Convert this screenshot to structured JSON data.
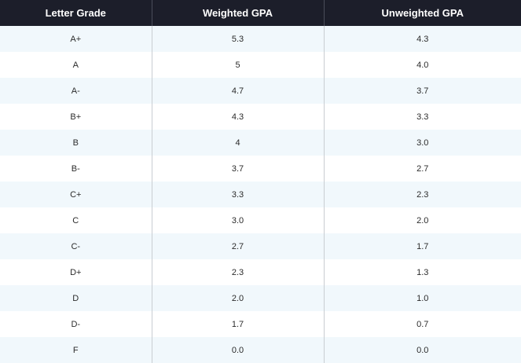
{
  "table": {
    "headers": [
      "Letter Grade",
      "Weighted GPA",
      "Unweighted GPA"
    ],
    "rows": [
      [
        "A+",
        "5.3",
        "4.3"
      ],
      [
        "A",
        "5",
        "4.0"
      ],
      [
        "A-",
        "4.7",
        "3.7"
      ],
      [
        "B+",
        "4.3",
        "3.3"
      ],
      [
        "B",
        "4",
        "3.0"
      ],
      [
        "B-",
        "3.7",
        "2.7"
      ],
      [
        "C+",
        "3.3",
        "2.3"
      ],
      [
        "C",
        "3.0",
        "2.0"
      ],
      [
        "C-",
        "2.7",
        "1.7"
      ],
      [
        "D+",
        "2.3",
        "1.3"
      ],
      [
        "D",
        "2.0",
        "1.0"
      ],
      [
        "D-",
        "1.7",
        "0.7"
      ],
      [
        "F",
        "0.0",
        "0.0"
      ]
    ]
  },
  "colors": {
    "header_bg": "#1c1e2a",
    "header_text": "#ffffff",
    "row_stripe": "#f1f8fc",
    "row_plain": "#ffffff"
  }
}
